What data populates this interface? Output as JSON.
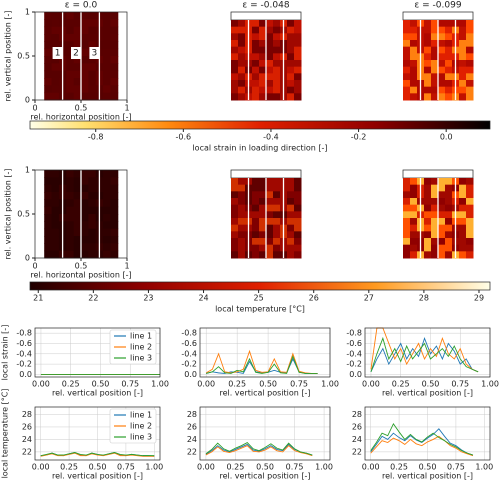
{
  "titles": [
    "ε = 0.0",
    "ε = -0.048",
    "ε = -0.099"
  ],
  "maps": [
    {
      "xlabel": "rel. horizontal position [-]",
      "ylabel": "rel. vertical position [-]",
      "xlim": [
        0,
        1
      ],
      "ylim": [
        0,
        1
      ],
      "xticks": [
        0,
        0.5,
        1
      ],
      "yticks": [
        0,
        0.5,
        1
      ],
      "line_labels": [
        "1",
        "2",
        "3"
      ]
    },
    {
      "xlabel": "rel. horizontal position [-]",
      "ylabel": "rel. vertical position [-]",
      "xlim": [
        0,
        1
      ],
      "ylim": [
        0,
        1
      ],
      "xticks": [
        0,
        0.5,
        1
      ],
      "yticks": [
        0,
        0.5,
        1
      ]
    }
  ],
  "colorbars": [
    {
      "label": "local strain in loading direction [-]",
      "lim": [
        -0.95,
        0.1
      ],
      "ticks": [
        -0.8,
        -0.6,
        -0.4,
        -0.2,
        {
          "value": 0,
          "label": "0.0"
        }
      ]
    },
    {
      "label": "local temperature [°C]",
      "lim": [
        20.85,
        29.2
      ],
      "ticks": [
        21,
        22,
        23,
        24,
        25,
        26,
        27,
        28,
        29
      ]
    }
  ],
  "chart_data": [
    {
      "type": "line",
      "ylabel": "local strain [-]",
      "xlabel": "rel. vertical position [-]",
      "legend": "upper right",
      "grid": true,
      "xlim": [
        -0.05,
        1.0
      ],
      "ylim": [
        0.05,
        -0.9
      ],
      "xticks": [
        {
          "value": 0,
          "label": "0.00"
        },
        {
          "value": 0.25,
          "label": "0.25"
        },
        {
          "value": 0.5,
          "label": "0.50"
        },
        {
          "value": 0.75,
          "label": "0.75"
        },
        {
          "value": 1,
          "label": "1.00"
        }
      ],
      "yticks": [
        -0.8,
        -0.6,
        -0.4,
        -0.2,
        {
          "value": 0,
          "label": "0.0"
        }
      ],
      "x": [
        0,
        0.25,
        0.5,
        0.75,
        1.0
      ],
      "series": [
        {
          "name": "line 1",
          "color": "#1f77b4",
          "values": [
            0,
            0,
            0,
            0,
            0
          ]
        },
        {
          "name": "line 2",
          "color": "#ff7f0e",
          "values": [
            0,
            0,
            0,
            0,
            0
          ]
        },
        {
          "name": "line 3",
          "color": "#2ca02c",
          "values": [
            0,
            0,
            0,
            0,
            0
          ]
        }
      ]
    },
    {
      "type": "line",
      "xlabel": "rel. vertical position [-]",
      "grid": true,
      "xlim": [
        -0.05,
        1.0
      ],
      "ylim": [
        0.05,
        -0.9
      ],
      "xticks": [
        {
          "value": 0,
          "label": "0.00"
        },
        {
          "value": 0.25,
          "label": "0.25"
        },
        {
          "value": 0.5,
          "label": "0.50"
        },
        {
          "value": 0.75,
          "label": "0.75"
        },
        {
          "value": 1,
          "label": "1.00"
        }
      ],
      "yticks": [
        -0.8,
        -0.6,
        -0.4,
        -0.2,
        {
          "value": 0,
          "label": "0.0"
        }
      ],
      "x": [
        0,
        0.05,
        0.1,
        0.15,
        0.2,
        0.25,
        0.3,
        0.35,
        0.4,
        0.45,
        0.5,
        0.55,
        0.6,
        0.65,
        0.7,
        0.75,
        0.8,
        0.85,
        0.9
      ],
      "series": [
        {
          "name": "line 1",
          "color": "#1f77b4",
          "values": [
            -0.02,
            -0.05,
            -0.03,
            -0.02,
            -0.05,
            -0.04,
            -0.02,
            -0.25,
            -0.05,
            -0.03,
            -0.04,
            -0.08,
            -0.04,
            -0.03,
            -0.3,
            -0.05,
            -0.02,
            -0.02,
            -0.02
          ]
        },
        {
          "name": "line 2",
          "color": "#ff7f0e",
          "values": [
            -0.03,
            -0.1,
            -0.4,
            -0.05,
            -0.03,
            -0.05,
            -0.1,
            -0.45,
            -0.08,
            -0.04,
            -0.05,
            -0.3,
            -0.05,
            -0.04,
            -0.4,
            -0.06,
            -0.03,
            -0.02,
            -0.02
          ]
        },
        {
          "name": "line 3",
          "color": "#2ca02c",
          "values": [
            -0.02,
            -0.05,
            -0.15,
            -0.03,
            -0.02,
            -0.08,
            -0.05,
            -0.3,
            -0.04,
            -0.02,
            -0.04,
            -0.2,
            -0.03,
            -0.02,
            -0.35,
            -0.04,
            -0.02,
            -0.02,
            -0.02
          ]
        }
      ]
    },
    {
      "type": "line",
      "xlabel": "rel. vertical position [-]",
      "grid": true,
      "xlim": [
        -0.05,
        1.0
      ],
      "ylim": [
        0.05,
        -0.9
      ],
      "xticks": [
        {
          "value": 0,
          "label": "0.00"
        },
        {
          "value": 0.25,
          "label": "0.25"
        },
        {
          "value": 0.5,
          "label": "0.50"
        },
        {
          "value": 0.75,
          "label": "0.75"
        },
        {
          "value": 1,
          "label": "1.00"
        }
      ],
      "yticks": [
        -0.8,
        -0.6,
        -0.4,
        -0.2,
        {
          "value": 0,
          "label": "0.0"
        }
      ],
      "x": [
        0,
        0.05,
        0.1,
        0.15,
        0.2,
        0.25,
        0.3,
        0.35,
        0.4,
        0.45,
        0.5,
        0.55,
        0.6,
        0.65,
        0.7,
        0.75,
        0.8,
        0.85,
        0.9
      ],
      "series": [
        {
          "name": "line 1",
          "color": "#1f77b4",
          "values": [
            -0.05,
            -0.3,
            -0.5,
            -0.2,
            -0.4,
            -0.6,
            -0.3,
            -0.5,
            -0.35,
            -0.7,
            -0.4,
            -0.55,
            -0.3,
            -0.6,
            -0.45,
            -0.2,
            -0.3,
            -0.1,
            -0.05
          ]
        },
        {
          "name": "line 2",
          "color": "#ff7f0e",
          "values": [
            -0.1,
            -0.9,
            -0.9,
            -0.6,
            -0.3,
            -0.5,
            -0.2,
            -0.4,
            -0.6,
            -0.3,
            -0.5,
            -0.35,
            -0.7,
            -0.4,
            -0.3,
            -0.5,
            -0.2,
            -0.1,
            -0.05
          ]
        },
        {
          "name": "line 3",
          "color": "#2ca02c",
          "values": [
            -0.05,
            -0.4,
            -0.7,
            -0.3,
            -0.5,
            -0.25,
            -0.55,
            -0.3,
            -0.45,
            -0.6,
            -0.3,
            -0.4,
            -0.5,
            -0.35,
            -0.55,
            -0.3,
            -0.15,
            -0.1,
            -0.05
          ]
        }
      ]
    },
    {
      "type": "line",
      "ylabel": "local temperature [°C]",
      "xlabel": "rel. vertical position [-]",
      "legend": "upper right",
      "grid": true,
      "xlim": [
        -0.05,
        1.05
      ],
      "ylim": [
        20.7,
        29.2
      ],
      "xticks": [
        {
          "value": 0,
          "label": "0.00"
        },
        {
          "value": 0.25,
          "label": "0.25"
        },
        {
          "value": 0.5,
          "label": "0.50"
        },
        {
          "value": 0.75,
          "label": "0.75"
        },
        {
          "value": 1,
          "label": "1.00"
        }
      ],
      "yticks": [
        22,
        24,
        26,
        28
      ],
      "x": [
        0,
        0.05,
        0.1,
        0.15,
        0.2,
        0.25,
        0.3,
        0.35,
        0.4,
        0.45,
        0.5,
        0.55,
        0.6,
        0.65,
        0.7,
        0.75,
        0.8,
        0.85,
        0.9,
        0.95,
        1.0
      ],
      "series": [
        {
          "name": "line 1",
          "color": "#1f77b4",
          "values": [
            21.4,
            21.5,
            21.8,
            21.5,
            21.4,
            21.7,
            21.9,
            21.5,
            21.4,
            21.8,
            21.6,
            21.4,
            21.7,
            21.9,
            21.5,
            21.4,
            21.6,
            21.5,
            21.4,
            21.4,
            21.3
          ]
        },
        {
          "name": "line 2",
          "color": "#ff7f0e",
          "values": [
            21.3,
            21.5,
            21.7,
            21.4,
            21.4,
            21.6,
            21.8,
            21.4,
            21.4,
            21.7,
            21.5,
            21.4,
            21.6,
            21.8,
            21.4,
            21.4,
            21.5,
            21.4,
            21.3,
            21.3,
            21.3
          ]
        },
        {
          "name": "line 3",
          "color": "#2ca02c",
          "values": [
            21.4,
            21.6,
            21.8,
            21.5,
            21.5,
            21.7,
            21.9,
            21.6,
            21.5,
            21.8,
            21.6,
            21.5,
            21.7,
            21.9,
            21.6,
            21.5,
            21.6,
            21.5,
            21.4,
            21.4,
            21.4
          ]
        }
      ]
    },
    {
      "type": "line",
      "xlabel": "rel. vertical position [-]",
      "grid": true,
      "xlim": [
        -0.05,
        1.05
      ],
      "ylim": [
        20.7,
        29.2
      ],
      "xticks": [
        {
          "value": 0,
          "label": "0.00"
        },
        {
          "value": 0.25,
          "label": "0.25"
        },
        {
          "value": 0.5,
          "label": "0.50"
        },
        {
          "value": 0.75,
          "label": "0.75"
        },
        {
          "value": 1,
          "label": "1.00"
        }
      ],
      "yticks": [
        22,
        24,
        26,
        28
      ],
      "x": [
        0,
        0.05,
        0.1,
        0.15,
        0.2,
        0.25,
        0.3,
        0.35,
        0.4,
        0.45,
        0.5,
        0.55,
        0.6,
        0.65,
        0.7,
        0.75,
        0.8,
        0.85,
        0.9
      ],
      "series": [
        {
          "name": "line 1",
          "color": "#1f77b4",
          "values": [
            21.6,
            22.2,
            23.0,
            22.3,
            22.0,
            22.4,
            22.8,
            23.2,
            22.3,
            22.1,
            22.5,
            23.0,
            22.4,
            22.2,
            23.2,
            22.4,
            22.0,
            21.8,
            21.5
          ]
        },
        {
          "name": "line 2",
          "color": "#ff7f0e",
          "values": [
            21.5,
            22.0,
            22.8,
            22.1,
            21.9,
            22.2,
            22.6,
            23.0,
            22.1,
            22.0,
            22.3,
            22.8,
            22.2,
            22.0,
            23.0,
            22.2,
            21.9,
            21.7,
            21.4
          ]
        },
        {
          "name": "line 3",
          "color": "#2ca02c",
          "values": [
            21.7,
            22.4,
            23.4,
            22.5,
            22.1,
            22.6,
            23.0,
            23.5,
            22.5,
            22.2,
            22.7,
            23.3,
            22.6,
            22.3,
            23.4,
            22.5,
            22.0,
            21.8,
            21.5
          ]
        }
      ]
    },
    {
      "type": "line",
      "xlabel": "rel. vertical position [-]",
      "grid": true,
      "xlim": [
        -0.05,
        1.05
      ],
      "ylim": [
        20.7,
        29.2
      ],
      "xticks": [
        {
          "value": 0,
          "label": "0.00"
        },
        {
          "value": 0.25,
          "label": "0.25"
        },
        {
          "value": 0.5,
          "label": "0.50"
        },
        {
          "value": 0.75,
          "label": "0.75"
        },
        {
          "value": 1,
          "label": "1.00"
        }
      ],
      "yticks": [
        22,
        24,
        26,
        28
      ],
      "x": [
        0,
        0.05,
        0.1,
        0.15,
        0.2,
        0.25,
        0.3,
        0.35,
        0.4,
        0.45,
        0.5,
        0.55,
        0.6,
        0.65,
        0.7,
        0.75,
        0.8,
        0.85,
        0.9
      ],
      "series": [
        {
          "name": "line 1",
          "color": "#1f77b4",
          "values": [
            22.0,
            23.2,
            24.5,
            24.0,
            25.0,
            24.3,
            23.8,
            24.6,
            23.9,
            23.5,
            24.2,
            24.8,
            25.7,
            24.5,
            23.4,
            23.0,
            22.3,
            21.8,
            21.5
          ]
        },
        {
          "name": "line 2",
          "color": "#ff7f0e",
          "values": [
            21.8,
            22.8,
            23.8,
            23.5,
            24.2,
            23.8,
            23.2,
            24.0,
            23.3,
            23.0,
            23.6,
            24.0,
            24.5,
            23.8,
            23.0,
            22.6,
            22.0,
            21.7,
            21.4
          ]
        },
        {
          "name": "line 3",
          "color": "#2ca02c",
          "values": [
            22.2,
            23.5,
            25.0,
            24.6,
            26.5,
            25.2,
            24.0,
            24.8,
            24.0,
            23.6,
            24.4,
            25.0,
            24.3,
            23.8,
            23.2,
            22.8,
            22.2,
            21.8,
            21.5
          ]
        }
      ]
    }
  ]
}
